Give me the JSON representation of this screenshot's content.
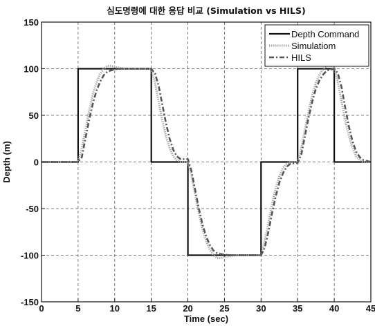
{
  "chart_data": {
    "type": "line",
    "title": "심도명령에 대한 응답 비교 (Simulation vs HILS)",
    "xlabel": "Time (sec)",
    "ylabel": "Depth (m)",
    "xlim": [
      0,
      45
    ],
    "ylim": [
      -150,
      150
    ],
    "x_ticks": [
      0,
      5,
      10,
      15,
      20,
      25,
      30,
      35,
      40,
      45
    ],
    "y_ticks": [
      -150,
      -100,
      -50,
      0,
      50,
      100,
      150
    ],
    "grid": true,
    "legend_position": "top-right",
    "series": [
      {
        "name": "Depth Command",
        "color": "#111111",
        "style": "solid",
        "points": [
          [
            0,
            0
          ],
          [
            5,
            0
          ],
          [
            5,
            100
          ],
          [
            15,
            100
          ],
          [
            15,
            0
          ],
          [
            20,
            0
          ],
          [
            20,
            -100
          ],
          [
            30,
            -100
          ],
          [
            30,
            0
          ],
          [
            35,
            0
          ],
          [
            35,
            100
          ],
          [
            40,
            100
          ],
          [
            40,
            0
          ],
          [
            45,
            0
          ]
        ]
      },
      {
        "name": "Simulatiom",
        "color": "#a8a8a8",
        "style": "dotted",
        "points": [
          [
            0,
            0
          ],
          [
            5,
            0
          ],
          [
            5.5,
            15
          ],
          [
            6,
            35
          ],
          [
            6.5,
            55
          ],
          [
            7,
            72
          ],
          [
            7.5,
            85
          ],
          [
            8,
            94
          ],
          [
            8.5,
            100
          ],
          [
            9,
            103
          ],
          [
            9.5,
            103
          ],
          [
            10,
            102
          ],
          [
            11,
            100.5
          ],
          [
            12,
            100
          ],
          [
            15,
            100
          ],
          [
            15.5,
            85
          ],
          [
            16,
            65
          ],
          [
            16.5,
            45
          ],
          [
            17,
            28
          ],
          [
            17.5,
            15
          ],
          [
            18,
            6
          ],
          [
            18.5,
            2
          ],
          [
            19,
            0
          ],
          [
            20,
            0
          ],
          [
            20.5,
            -15
          ],
          [
            21,
            -35
          ],
          [
            21.5,
            -55
          ],
          [
            22,
            -72
          ],
          [
            22.5,
            -85
          ],
          [
            23,
            -94
          ],
          [
            23.5,
            -100
          ],
          [
            24,
            -103
          ],
          [
            24.5,
            -103
          ],
          [
            25,
            -102
          ],
          [
            26,
            -100.5
          ],
          [
            27,
            -100
          ],
          [
            30,
            -100
          ],
          [
            30.5,
            -85
          ],
          [
            31,
            -65
          ],
          [
            31.5,
            -45
          ],
          [
            32,
            -28
          ],
          [
            32.5,
            -15
          ],
          [
            33,
            -6
          ],
          [
            33.5,
            -2
          ],
          [
            34,
            0
          ],
          [
            35,
            0
          ],
          [
            35.5,
            15
          ],
          [
            36,
            35
          ],
          [
            36.5,
            55
          ],
          [
            37,
            72
          ],
          [
            37.5,
            85
          ],
          [
            38,
            94
          ],
          [
            38.5,
            100
          ],
          [
            39,
            103
          ],
          [
            39.5,
            103
          ],
          [
            40,
            102
          ],
          [
            40.5,
            85
          ],
          [
            41,
            65
          ],
          [
            41.5,
            45
          ],
          [
            42,
            28
          ],
          [
            42.5,
            15
          ],
          [
            43,
            6
          ],
          [
            43.5,
            2
          ],
          [
            44,
            0
          ],
          [
            45,
            0
          ]
        ]
      },
      {
        "name": "HILS",
        "color": "#555555",
        "style": "dashdot",
        "points": [
          [
            0,
            0
          ],
          [
            5,
            0
          ],
          [
            5.5,
            5
          ],
          [
            6,
            25
          ],
          [
            6.5,
            45
          ],
          [
            7,
            62
          ],
          [
            7.5,
            76
          ],
          [
            8,
            86
          ],
          [
            8.5,
            93
          ],
          [
            9,
            97
          ],
          [
            10,
            99.5
          ],
          [
            11,
            100
          ],
          [
            15,
            100
          ],
          [
            15.5,
            95
          ],
          [
            16,
            82
          ],
          [
            16.5,
            62
          ],
          [
            17,
            42
          ],
          [
            17.5,
            25
          ],
          [
            18,
            13
          ],
          [
            18.5,
            6
          ],
          [
            19,
            3
          ],
          [
            20,
            3
          ],
          [
            20.5,
            -10
          ],
          [
            21,
            -30
          ],
          [
            21.5,
            -50
          ],
          [
            22,
            -67
          ],
          [
            22.5,
            -80
          ],
          [
            23,
            -89
          ],
          [
            23.5,
            -95
          ],
          [
            24,
            -98
          ],
          [
            25,
            -99.5
          ],
          [
            26,
            -100
          ],
          [
            30,
            -100
          ],
          [
            30.5,
            -92
          ],
          [
            31,
            -75
          ],
          [
            31.5,
            -55
          ],
          [
            32,
            -37
          ],
          [
            32.5,
            -22
          ],
          [
            33,
            -12
          ],
          [
            33.5,
            -5
          ],
          [
            34,
            -2
          ],
          [
            35,
            -1
          ],
          [
            35.5,
            8
          ],
          [
            36,
            28
          ],
          [
            36.5,
            48
          ],
          [
            37,
            65
          ],
          [
            37.5,
            79
          ],
          [
            38,
            88
          ],
          [
            38.5,
            94
          ],
          [
            39,
            98
          ],
          [
            40,
            100
          ],
          [
            40.5,
            95
          ],
          [
            41,
            80
          ],
          [
            41.5,
            58
          ],
          [
            42,
            38
          ],
          [
            42.5,
            22
          ],
          [
            43,
            11
          ],
          [
            43.5,
            5
          ],
          [
            44,
            2
          ],
          [
            45,
            0
          ]
        ]
      }
    ]
  }
}
